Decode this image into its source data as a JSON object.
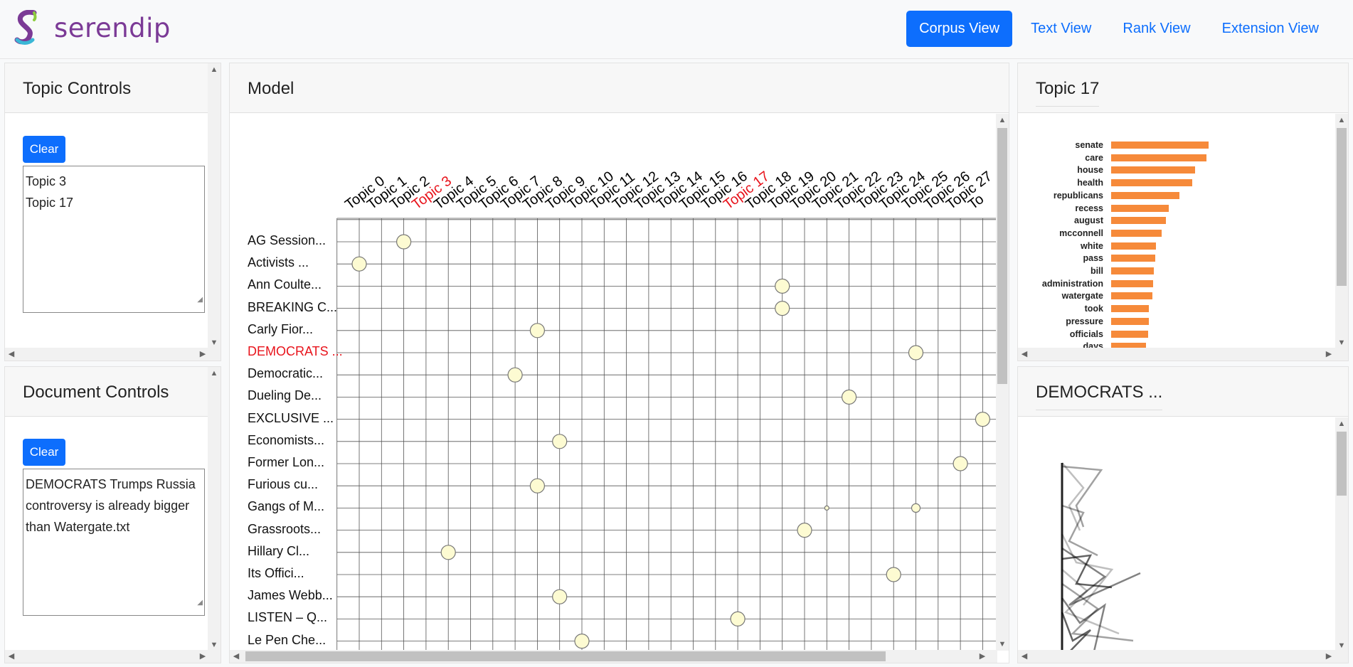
{
  "app": {
    "brand": "serendip"
  },
  "nav": {
    "items": [
      "Corpus View",
      "Text View",
      "Rank View",
      "Extension View"
    ],
    "active": "Corpus View"
  },
  "topic_controls": {
    "title": "Topic Controls",
    "clear_label": "Clear",
    "selected": [
      "Topic 3",
      "Topic 17"
    ]
  },
  "document_controls": {
    "title": "Document Controls",
    "clear_label": "Clear",
    "selected": "DEMOCRATS Trumps Russia controversy is already bigger than Watergate.txt"
  },
  "model": {
    "title": "Model",
    "topics": [
      "Topic 0",
      "Topic 1",
      "Topic 2",
      "Topic 3",
      "Topic 4",
      "Topic 5",
      "Topic 6",
      "Topic 7",
      "Topic 8",
      "Topic 9",
      "Topic 10",
      "Topic 11",
      "Topic 12",
      "Topic 13",
      "Topic 14",
      "Topic 15",
      "Topic 16",
      "Topic 17",
      "Topic 18",
      "Topic 19",
      "Topic 20",
      "Topic 21",
      "Topic 22",
      "Topic 23",
      "Topic 24",
      "Topic 25",
      "Topic 26",
      "Topic 27",
      "To"
    ],
    "selected_topics": [
      3,
      17
    ],
    "documents": [
      "AG Session...",
      "Activists ...",
      "Ann Coulte...",
      "BREAKING C...",
      "Carly Fior...",
      "DEMOCRATS ...",
      "Democratic...",
      "Dueling De...",
      "EXCLUSIVE ...",
      "Economists...",
      "Former Lon...",
      "Furious cu...",
      "Gangs of M...",
      "Grassroots...",
      "Hillary Cl...",
      "Its Offici...",
      "James Webb...",
      "LISTEN – Q...",
      "Le Pen Che..."
    ],
    "selected_document": 5,
    "circles": [
      {
        "doc": 0,
        "topic": 2,
        "size": "large"
      },
      {
        "doc": 1,
        "topic": 0,
        "size": "large"
      },
      {
        "doc": 2,
        "topic": 19,
        "size": "large"
      },
      {
        "doc": 3,
        "topic": 19,
        "size": "large"
      },
      {
        "doc": 4,
        "topic": 8,
        "size": "large"
      },
      {
        "doc": 5,
        "topic": 25,
        "size": "large"
      },
      {
        "doc": 6,
        "topic": 7,
        "size": "large"
      },
      {
        "doc": 7,
        "topic": 22,
        "size": "large"
      },
      {
        "doc": 8,
        "topic": 28,
        "size": "large"
      },
      {
        "doc": 9,
        "topic": 9,
        "size": "large"
      },
      {
        "doc": 10,
        "topic": 27,
        "size": "large"
      },
      {
        "doc": 11,
        "topic": 8,
        "size": "large"
      },
      {
        "doc": 12,
        "topic": 21,
        "size": "tiny"
      },
      {
        "doc": 12,
        "topic": 25,
        "size": "small"
      },
      {
        "doc": 13,
        "topic": 20,
        "size": "large"
      },
      {
        "doc": 14,
        "topic": 4,
        "size": "large"
      },
      {
        "doc": 15,
        "topic": 24,
        "size": "large"
      },
      {
        "doc": 16,
        "topic": 9,
        "size": "large"
      },
      {
        "doc": 17,
        "topic": 17,
        "size": "large"
      },
      {
        "doc": 18,
        "topic": 10,
        "size": "large"
      }
    ]
  },
  "topic_panel": {
    "title": "Topic 17",
    "chart_data": {
      "type": "bar",
      "orientation": "horizontal",
      "categories": [
        "senate",
        "care",
        "house",
        "health",
        "republicans",
        "recess",
        "august",
        "mcconnell",
        "white",
        "pass",
        "bill",
        "administration",
        "watergate",
        "took",
        "pressure",
        "officials",
        "days"
      ],
      "values": [
        1.0,
        0.98,
        0.86,
        0.83,
        0.7,
        0.59,
        0.56,
        0.52,
        0.46,
        0.45,
        0.44,
        0.43,
        0.42,
        0.39,
        0.39,
        0.38,
        0.36
      ]
    }
  },
  "document_panel": {
    "title": "DEMOCRATS ..."
  },
  "colors": {
    "accent": "#0d6efd",
    "brand": "#7b3a96",
    "selected": "#e8141c",
    "bar": "#f68a3a",
    "circle_fill": "#fdfbd2"
  }
}
